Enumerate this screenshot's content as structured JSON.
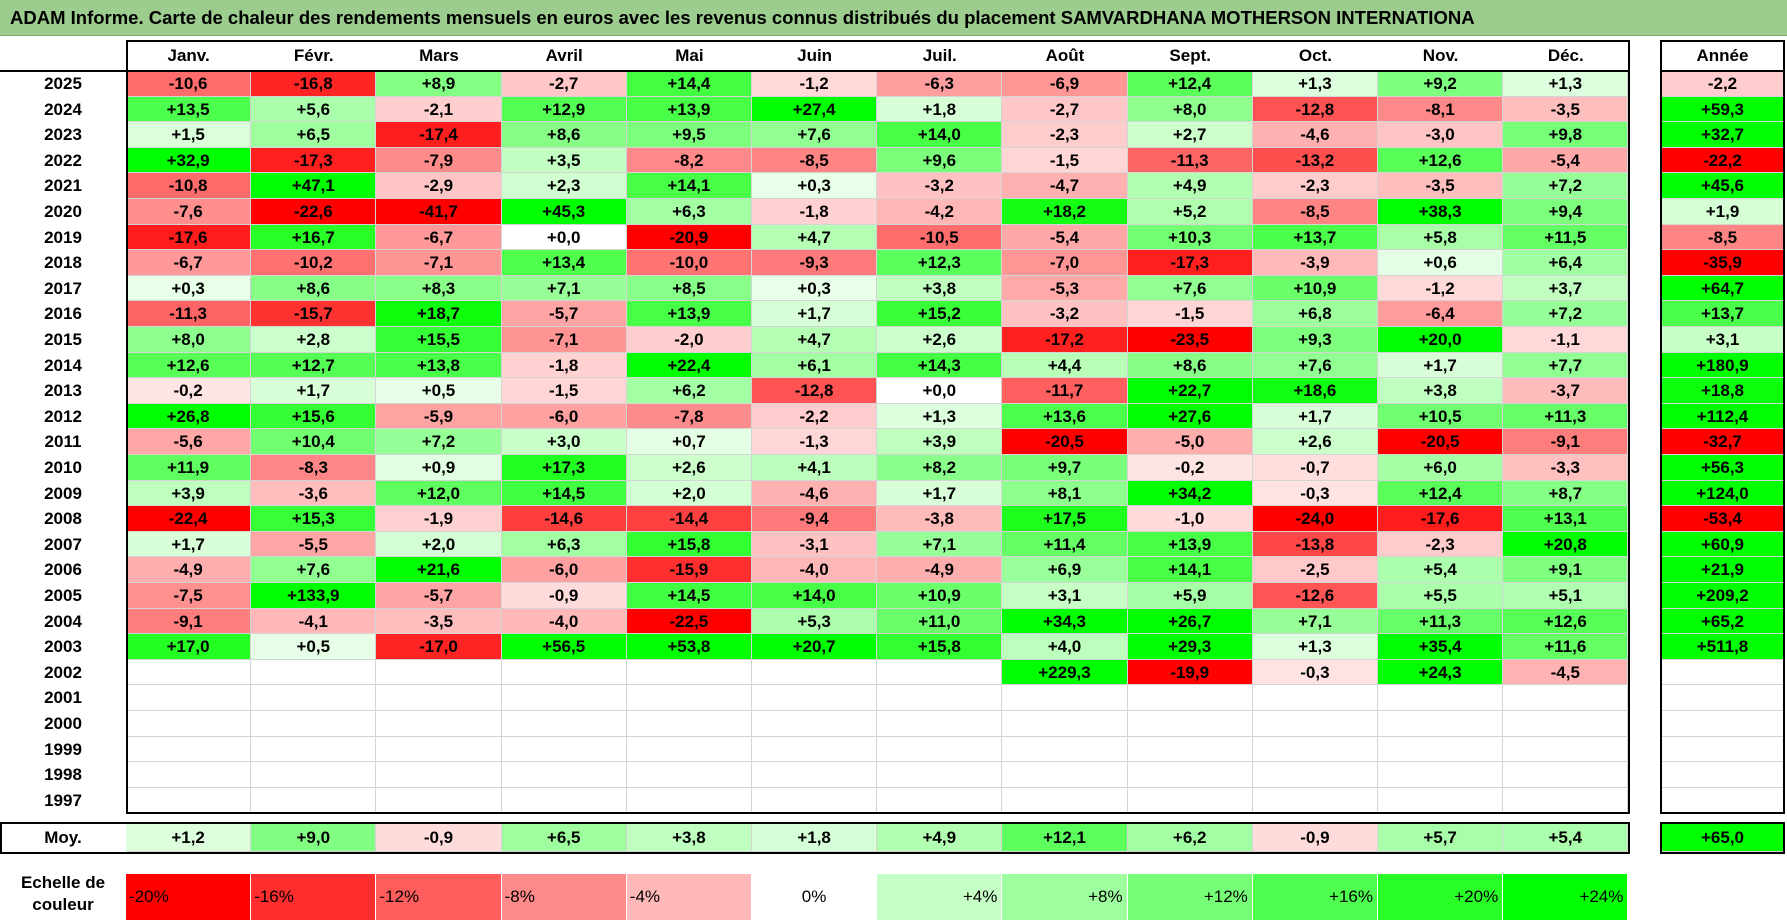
{
  "title": "ADAM Informe. Carte de chaleur des rendements mensuels en euros avec les revenus connus distribués du placement SAMVARDHANA MOTHERSON INTERNATIONA",
  "chart_data": {
    "type": "heatmap",
    "columns": [
      "Janv.",
      "Févr.",
      "Mars",
      "Avril",
      "Mai",
      "Juin",
      "Juil.",
      "Août",
      "Sept.",
      "Oct.",
      "Nov.",
      "Déc."
    ],
    "year_header": "Année",
    "rows": [
      {
        "year": "2025",
        "values": [
          "-10,6",
          "-16,8",
          "+8,9",
          "-2,7",
          "+14,4",
          "-1,2",
          "-6,3",
          "-6,9",
          "+12,4",
          "+1,3",
          "+9,2",
          "+1,3"
        ],
        "annual": "-2,2"
      },
      {
        "year": "2024",
        "values": [
          "+13,5",
          "+5,6",
          "-2,1",
          "+12,9",
          "+13,9",
          "+27,4",
          "+1,8",
          "-2,7",
          "+8,0",
          "-12,8",
          "-8,1",
          "-3,5"
        ],
        "annual": "+59,3"
      },
      {
        "year": "2023",
        "values": [
          "+1,5",
          "+6,5",
          "-17,4",
          "+8,6",
          "+9,5",
          "+7,6",
          "+14,0",
          "-2,3",
          "+2,7",
          "-4,6",
          "-3,0",
          "+9,8"
        ],
        "annual": "+32,7"
      },
      {
        "year": "2022",
        "values": [
          "+32,9",
          "-17,3",
          "-7,9",
          "+3,5",
          "-8,2",
          "-8,5",
          "+9,6",
          "-1,5",
          "-11,3",
          "-13,2",
          "+12,6",
          "-5,4"
        ],
        "annual": "-22,2"
      },
      {
        "year": "2021",
        "values": [
          "-10,8",
          "+47,1",
          "-2,9",
          "+2,3",
          "+14,1",
          "+0,3",
          "-3,2",
          "-4,7",
          "+4,9",
          "-2,3",
          "-3,5",
          "+7,2"
        ],
        "annual": "+45,6"
      },
      {
        "year": "2020",
        "values": [
          "-7,6",
          "-22,6",
          "-41,7",
          "+45,3",
          "+6,3",
          "-1,8",
          "-4,2",
          "+18,2",
          "+5,2",
          "-8,5",
          "+38,3",
          "+9,4"
        ],
        "annual": "+1,9"
      },
      {
        "year": "2019",
        "values": [
          "-17,6",
          "+16,7",
          "-6,7",
          "+0,0",
          "-20,9",
          "+4,7",
          "-10,5",
          "-5,4",
          "+10,3",
          "+13,7",
          "+5,8",
          "+11,5"
        ],
        "annual": "-8,5"
      },
      {
        "year": "2018",
        "values": [
          "-6,7",
          "-10,2",
          "-7,1",
          "+13,4",
          "-10,0",
          "-9,3",
          "+12,3",
          "-7,0",
          "-17,3",
          "-3,9",
          "+0,6",
          "+6,4"
        ],
        "annual": "-35,9"
      },
      {
        "year": "2017",
        "values": [
          "+0,3",
          "+8,6",
          "+8,3",
          "+7,1",
          "+8,5",
          "+0,3",
          "+3,8",
          "-5,3",
          "+7,6",
          "+10,9",
          "-1,2",
          "+3,7"
        ],
        "annual": "+64,7"
      },
      {
        "year": "2016",
        "values": [
          "-11,3",
          "-15,7",
          "+18,7",
          "-5,7",
          "+13,9",
          "+1,7",
          "+15,2",
          "-3,2",
          "-1,5",
          "+6,8",
          "-6,4",
          "+7,2"
        ],
        "annual": "+13,7"
      },
      {
        "year": "2015",
        "values": [
          "+8,0",
          "+2,8",
          "+15,5",
          "-7,1",
          "-2,0",
          "+4,7",
          "+2,6",
          "-17,2",
          "-23,5",
          "+9,3",
          "+20,0",
          "-1,1"
        ],
        "annual": "+3,1"
      },
      {
        "year": "2014",
        "values": [
          "+12,6",
          "+12,7",
          "+13,8",
          "-1,8",
          "+22,4",
          "+6,1",
          "+14,3",
          "+4,4",
          "+8,6",
          "+7,6",
          "+1,7",
          "+7,7"
        ],
        "annual": "+180,9"
      },
      {
        "year": "2013",
        "values": [
          "-0,2",
          "+1,7",
          "+0,5",
          "-1,5",
          "+6,2",
          "-12,8",
          "+0,0",
          "-11,7",
          "+22,7",
          "+18,6",
          "+3,8",
          "-3,7"
        ],
        "annual": "+18,8"
      },
      {
        "year": "2012",
        "values": [
          "+26,8",
          "+15,6",
          "-5,9",
          "-6,0",
          "-7,8",
          "-2,2",
          "+1,3",
          "+13,6",
          "+27,6",
          "+1,7",
          "+10,5",
          "+11,3"
        ],
        "annual": "+112,4"
      },
      {
        "year": "2011",
        "values": [
          "-5,6",
          "+10,4",
          "+7,2",
          "+3,0",
          "+0,7",
          "-1,3",
          "+3,9",
          "-20,5",
          "-5,0",
          "+2,6",
          "-20,5",
          "-9,1"
        ],
        "annual": "-32,7"
      },
      {
        "year": "2010",
        "values": [
          "+11,9",
          "-8,3",
          "+0,9",
          "+17,3",
          "+2,6",
          "+4,1",
          "+8,2",
          "+9,7",
          "-0,2",
          "-0,7",
          "+6,0",
          "-3,3"
        ],
        "annual": "+56,3"
      },
      {
        "year": "2009",
        "values": [
          "+3,9",
          "-3,6",
          "+12,0",
          "+14,5",
          "+2,0",
          "-4,6",
          "+1,7",
          "+8,1",
          "+34,2",
          "-0,3",
          "+12,4",
          "+8,7"
        ],
        "annual": "+124,0"
      },
      {
        "year": "2008",
        "values": [
          "-22,4",
          "+15,3",
          "-1,9",
          "-14,6",
          "-14,4",
          "-9,4",
          "-3,8",
          "+17,5",
          "-1,0",
          "-24,0",
          "-17,6",
          "+13,1"
        ],
        "annual": "-53,4"
      },
      {
        "year": "2007",
        "values": [
          "+1,7",
          "-5,5",
          "+2,0",
          "+6,3",
          "+15,8",
          "-3,1",
          "+7,1",
          "+11,4",
          "+13,9",
          "-13,8",
          "-2,3",
          "+20,8"
        ],
        "annual": "+60,9"
      },
      {
        "year": "2006",
        "values": [
          "-4,9",
          "+7,6",
          "+21,6",
          "-6,0",
          "-15,9",
          "-4,0",
          "-4,9",
          "+6,9",
          "+14,1",
          "-2,5",
          "+5,4",
          "+9,1"
        ],
        "annual": "+21,9"
      },
      {
        "year": "2005",
        "values": [
          "-7,5",
          "+133,9",
          "-5,7",
          "-0,9",
          "+14,5",
          "+14,0",
          "+10,9",
          "+3,1",
          "+5,9",
          "-12,6",
          "+5,5",
          "+5,1"
        ],
        "annual": "+209,2"
      },
      {
        "year": "2004",
        "values": [
          "-9,1",
          "-4,1",
          "-3,5",
          "-4,0",
          "-22,5",
          "+5,3",
          "+11,0",
          "+34,3",
          "+26,7",
          "+7,1",
          "+11,3",
          "+12,6"
        ],
        "annual": "+65,2"
      },
      {
        "year": "2003",
        "values": [
          "+17,0",
          "+0,5",
          "-17,0",
          "+56,5",
          "+53,8",
          "+20,7",
          "+15,8",
          "+4,0",
          "+29,3",
          "+1,3",
          "+35,4",
          "+11,6"
        ],
        "annual": "+511,8"
      },
      {
        "year": "2002",
        "values": [
          "",
          "",
          "",
          "",
          "",
          "",
          "",
          "+229,3",
          "-19,9",
          "-0,3",
          "+24,3",
          "-4,5"
        ],
        "annual": ""
      },
      {
        "year": "2001",
        "values": [
          "",
          "",
          "",
          "",
          "",
          "",
          "",
          "",
          "",
          "",
          "",
          ""
        ],
        "annual": ""
      },
      {
        "year": "2000",
        "values": [
          "",
          "",
          "",
          "",
          "",
          "",
          "",
          "",
          "",
          "",
          "",
          ""
        ],
        "annual": ""
      },
      {
        "year": "1999",
        "values": [
          "",
          "",
          "",
          "",
          "",
          "",
          "",
          "",
          "",
          "",
          "",
          ""
        ],
        "annual": ""
      },
      {
        "year": "1998",
        "values": [
          "",
          "",
          "",
          "",
          "",
          "",
          "",
          "",
          "",
          "",
          "",
          ""
        ],
        "annual": ""
      },
      {
        "year": "1997",
        "values": [
          "",
          "",
          "",
          "",
          "",
          "",
          "",
          "",
          "",
          "",
          "",
          ""
        ],
        "annual": ""
      }
    ],
    "average": {
      "label": "Moy.",
      "values": [
        "+1,2",
        "+9,0",
        "-0,9",
        "+6,5",
        "+3,8",
        "+1,8",
        "+4,9",
        "+12,1",
        "+6,2",
        "-0,9",
        "+5,7",
        "+5,4"
      ],
      "annual": "+65,0"
    },
    "scale": {
      "label_line1": "Echelle de",
      "label_line2": "couleur",
      "items": [
        "-20%",
        "-16%",
        "-12%",
        "-8%",
        "-4%",
        "0%",
        "+4%",
        "+8%",
        "+12%",
        "+16%",
        "+20%",
        "+24%"
      ]
    },
    "colors": {
      "negative_max": "#ff0000",
      "positive_max": "#00ff00",
      "neutral": "#ffffff"
    }
  }
}
